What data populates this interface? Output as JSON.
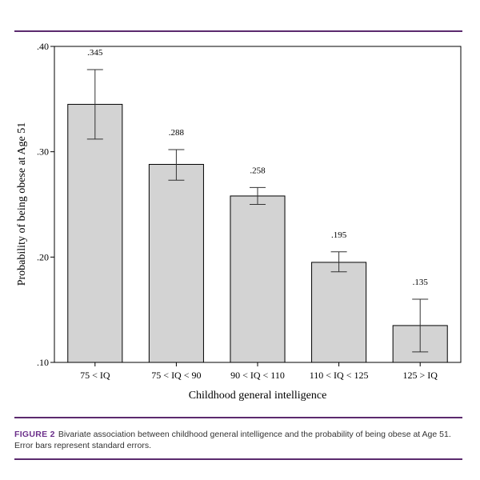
{
  "chart_data": {
    "type": "bar",
    "categories": [
      "75 < IQ",
      "75 < IQ < 90",
      "90 < IQ < 110",
      "110 < IQ < 125",
      "125 > IQ"
    ],
    "values": [
      0.345,
      0.288,
      0.258,
      0.195,
      0.135
    ],
    "value_labels": [
      ".345",
      ".288",
      ".258",
      ".195",
      ".135"
    ],
    "error_upper": [
      0.378,
      0.302,
      0.266,
      0.205,
      0.16
    ],
    "error_lower": [
      0.312,
      0.273,
      0.25,
      0.186,
      0.11
    ],
    "ylim": [
      0.1,
      0.4
    ],
    "yticks": [
      0.1,
      0.2,
      0.3,
      0.4
    ],
    "ytick_labels": [
      ".10",
      ".20",
      ".30",
      ".40"
    ],
    "xlabel": "Childhood general intelligence",
    "ylabel": "Probability of being obese at Age 51",
    "bar_color": "#d3d3d3",
    "title": ""
  },
  "caption": {
    "figure_label": "FIGURE 2",
    "text": "Bivariate association between childhood general intelligence and the probability of being obese at Age 51. Error bars represent standard errors."
  },
  "colors": {
    "rule": "#5b2a6e",
    "figure_label": "#6b2f8a"
  }
}
